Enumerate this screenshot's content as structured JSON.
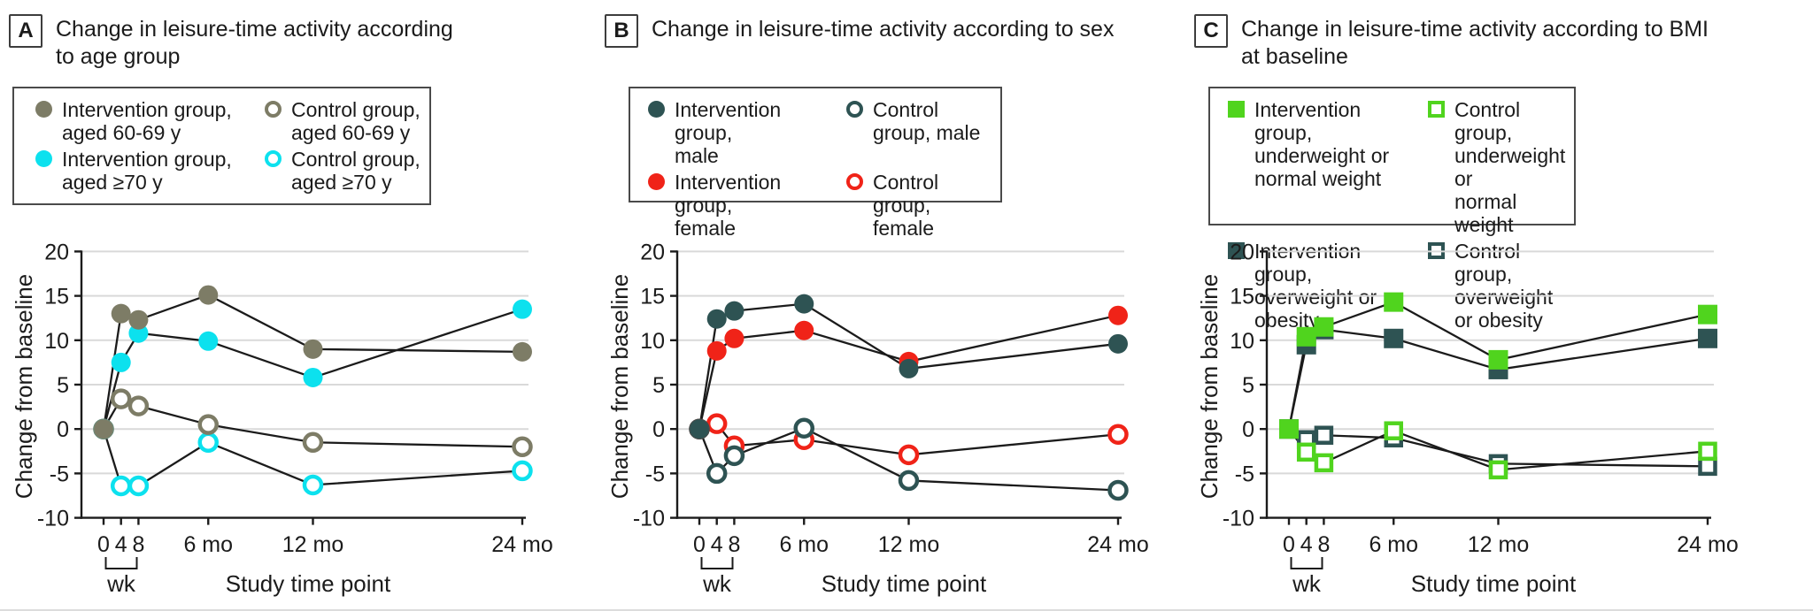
{
  "chart_data": [
    {
      "type": "line",
      "panel_label": "A",
      "title": "Change in leisure-time activity according\nto age group",
      "xlabel": "Study time point",
      "ylabel": "Change from baseline",
      "x_months": [
        0,
        1,
        2,
        6,
        12,
        24
      ],
      "x_tick_labels": [
        "0",
        "4",
        "8",
        "6 mo",
        "12 mo",
        "24 mo"
      ],
      "x_bracket_label": "wk",
      "ylim": [
        -10,
        20
      ],
      "y_ticks": [
        20,
        15,
        10,
        5,
        0,
        -5,
        -10
      ],
      "grid": true,
      "legend_position": "top",
      "series": [
        {
          "name": "Intervention group,\naged 60-69 y",
          "color": "#7d7c66",
          "marker": "circle",
          "fill": "filled",
          "values": [
            0,
            13,
            12.3,
            15.1,
            9,
            8.7
          ]
        },
        {
          "name": "Intervention group,\naged ≥70 y",
          "color": "#0ce1ee",
          "marker": "circle",
          "fill": "filled",
          "values": [
            0,
            7.5,
            10.8,
            9.9,
            5.8,
            13.5
          ]
        },
        {
          "name": "Control group, aged 60-69 y",
          "color": "#7d7c66",
          "marker": "circle",
          "fill": "open",
          "values": [
            0,
            3.4,
            2.6,
            0.5,
            -1.5,
            -2
          ]
        },
        {
          "name": "Control group, aged ≥70 y",
          "color": "#0ce1ee",
          "marker": "circle",
          "fill": "open",
          "values": [
            0,
            -6.4,
            -6.4,
            -1.5,
            -6.3,
            -4.7
          ]
        }
      ]
    },
    {
      "type": "line",
      "panel_label": "B",
      "title": "Change in leisure-time activity according to sex",
      "xlabel": "Study time point",
      "ylabel": "Change from baseline",
      "x_months": [
        0,
        1,
        2,
        6,
        12,
        24
      ],
      "x_tick_labels": [
        "0",
        "4",
        "8",
        "6 mo",
        "12 mo",
        "24 mo"
      ],
      "x_bracket_label": "wk",
      "ylim": [
        -10,
        20
      ],
      "y_ticks": [
        20,
        15,
        10,
        5,
        0,
        -5,
        -10
      ],
      "grid": true,
      "legend_position": "top",
      "series": [
        {
          "name": "Intervention group,\nmale",
          "color": "#2e5353",
          "marker": "circle",
          "fill": "filled",
          "values": [
            0,
            12.4,
            13.3,
            14.1,
            6.8,
            9.6
          ]
        },
        {
          "name": "Intervention group,\nfemale",
          "color": "#f02318",
          "marker": "circle",
          "fill": "filled",
          "values": [
            0,
            8.8,
            10.2,
            11.1,
            7.6,
            12.8
          ]
        },
        {
          "name": "Control group, male",
          "color": "#2e5353",
          "marker": "circle",
          "fill": "open",
          "values": [
            0,
            -5,
            -3,
            0.1,
            -5.8,
            -6.9
          ]
        },
        {
          "name": "Control group, female",
          "color": "#f02318",
          "marker": "circle",
          "fill": "open",
          "values": [
            0,
            0.6,
            -1.9,
            -1.2,
            -2.9,
            -0.6
          ]
        }
      ]
    },
    {
      "type": "line",
      "panel_label": "C",
      "title": "Change in leisure-time activity according to BMI\nat baseline",
      "xlabel": "Study time point",
      "ylabel": "Change from baseline",
      "x_months": [
        0,
        1,
        2,
        6,
        12,
        24
      ],
      "x_tick_labels": [
        "0",
        "4",
        "8",
        "6 mo",
        "12 mo",
        "24 mo"
      ],
      "x_bracket_label": "wk",
      "ylim": [
        -10,
        20
      ],
      "y_ticks": [
        20,
        15,
        10,
        5,
        0,
        -5,
        -10
      ],
      "grid": true,
      "legend_position": "top",
      "series": [
        {
          "name": "Intervention group,\nunderweight or\nnormal weight",
          "color": "#50d41e",
          "marker": "square",
          "fill": "filled",
          "values": [
            0,
            10.4,
            11.5,
            14.3,
            7.8,
            12.9
          ]
        },
        {
          "name": "Intervention group,\noverweight or obesity",
          "color": "#2e5353",
          "marker": "square",
          "fill": "filled",
          "values": [
            0,
            9.5,
            11.2,
            10.2,
            6.7,
            10.2
          ]
        },
        {
          "name": "Control group,\nunderweight or\nnormal weight",
          "color": "#50d41e",
          "marker": "square",
          "fill": "open",
          "values": [
            0,
            -2.6,
            -3.8,
            -0.2,
            -4.6,
            -2.5
          ]
        },
        {
          "name": "Control group,\noverweight or obesity",
          "color": "#2e5353",
          "marker": "square",
          "fill": "open",
          "values": [
            0,
            -1.2,
            -0.7,
            -1,
            -3.9,
            -4.2
          ]
        }
      ]
    }
  ],
  "style": {
    "ink_color": "#1b1b1b",
    "gridline_color": "#d9d9d9"
  }
}
